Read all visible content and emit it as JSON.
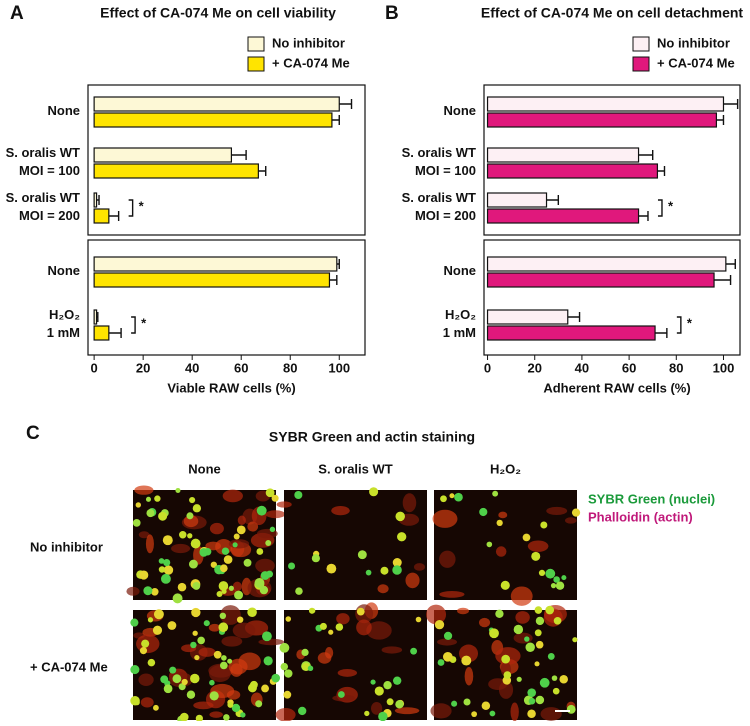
{
  "chart_data": [
    {
      "type": "bar",
      "orientation": "horizontal",
      "panel": "A",
      "title": "Effect of CA-074 Me on cell viability",
      "xlabel": "Viable RAW cells (%)",
      "categories": [
        "None",
        "S. oralis WT\nMOI = 100",
        "S. oralis WT\nMOI = 200",
        "None",
        "H₂O₂\n1 mM"
      ],
      "series": [
        {
          "name": "No inhibitor",
          "color": "#fdf8d6",
          "values": [
            100,
            56,
            1,
            99,
            1
          ],
          "errors": [
            5,
            6,
            1,
            1,
            0.5
          ]
        },
        {
          "name": "+ CA-074 Me",
          "color": "#ffe400",
          "values": [
            97,
            67,
            6,
            96,
            6
          ],
          "errors": [
            3,
            3,
            4,
            3,
            5
          ]
        }
      ],
      "annotations": [
        "*",
        "*"
      ],
      "xlim": [
        -2.5,
        110.5
      ],
      "xticks": [
        0,
        20,
        40,
        60,
        80,
        100
      ]
    },
    {
      "type": "bar",
      "orientation": "horizontal",
      "panel": "B",
      "title": "Effect of CA-074 Me on cell detachment",
      "xlabel": "Adherent RAW cells (%)",
      "categories": [
        "None",
        "S. oralis WT\nMOI = 100",
        "S. oralis WT\nMOI = 200",
        "None",
        "H₂O₂\n1 mM"
      ],
      "series": [
        {
          "name": "No inhibitor",
          "color": "#fdf0f4",
          "values": [
            100,
            64,
            25,
            101,
            34
          ],
          "errors": [
            6,
            6,
            5,
            4,
            5
          ]
        },
        {
          "name": "+ CA-074 Me",
          "color": "#e0187c",
          "values": [
            97,
            72,
            64,
            96,
            71
          ],
          "errors": [
            3,
            3,
            4,
            7,
            5
          ]
        }
      ],
      "annotations": [
        "*",
        "*"
      ],
      "xlim": [
        -1.5,
        107
      ],
      "xticks": [
        0,
        20,
        40,
        60,
        80,
        100
      ]
    }
  ],
  "panel_c": {
    "panel": "C",
    "title": "SYBR Green and actin staining",
    "columns": [
      "None",
      "S. oralis WT",
      "H₂O₂"
    ],
    "rows": [
      "No inhibitor",
      "+ CA-074 Me"
    ],
    "legend": [
      {
        "text": "SYBR Green (nuclei)",
        "color": "#1a9a3a"
      },
      {
        "text": "Phalloidin (actin)",
        "color": "#c0197a"
      }
    ]
  }
}
